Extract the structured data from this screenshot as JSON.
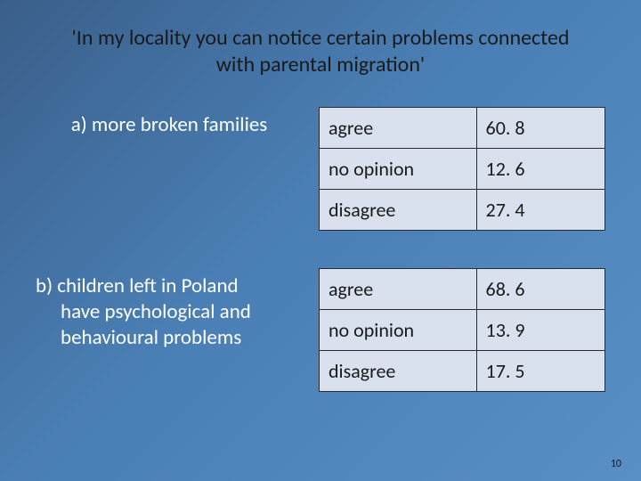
{
  "slide": {
    "title": "'In my locality you can notice certain problems connected with parental migration'",
    "background_gradient": [
      "#3a5f8a",
      "#4a7fb5",
      "#5a8fc5"
    ],
    "title_color": "#1a1a1a",
    "label_color": "#ffffff",
    "title_fontsize": 24,
    "label_fontsize": 23,
    "cell_fontsize": 22,
    "page_number": "10"
  },
  "sections": [
    {
      "label": "a) more broken families",
      "label_style": "center",
      "table": {
        "cell_bg": "#d9e1ef",
        "border_color": "#2b2b2b",
        "rows": [
          {
            "category": "agree",
            "value": "60. 8"
          },
          {
            "category": "no opinion",
            "value": "12. 6"
          },
          {
            "category": "disagree",
            "value": "27. 4"
          }
        ]
      }
    },
    {
      "label_lines": [
        "b) children left in Poland",
        "have psychological and",
        "behavioural problems"
      ],
      "label_style": "hanging",
      "table": {
        "cell_bg": "#d9e1ef",
        "border_color": "#2b2b2b",
        "rows": [
          {
            "category": "agree",
            "value": "68. 6"
          },
          {
            "category": "no opinion",
            "value": "13. 9"
          },
          {
            "category": "disagree",
            "value": "17. 5"
          }
        ]
      }
    }
  ]
}
